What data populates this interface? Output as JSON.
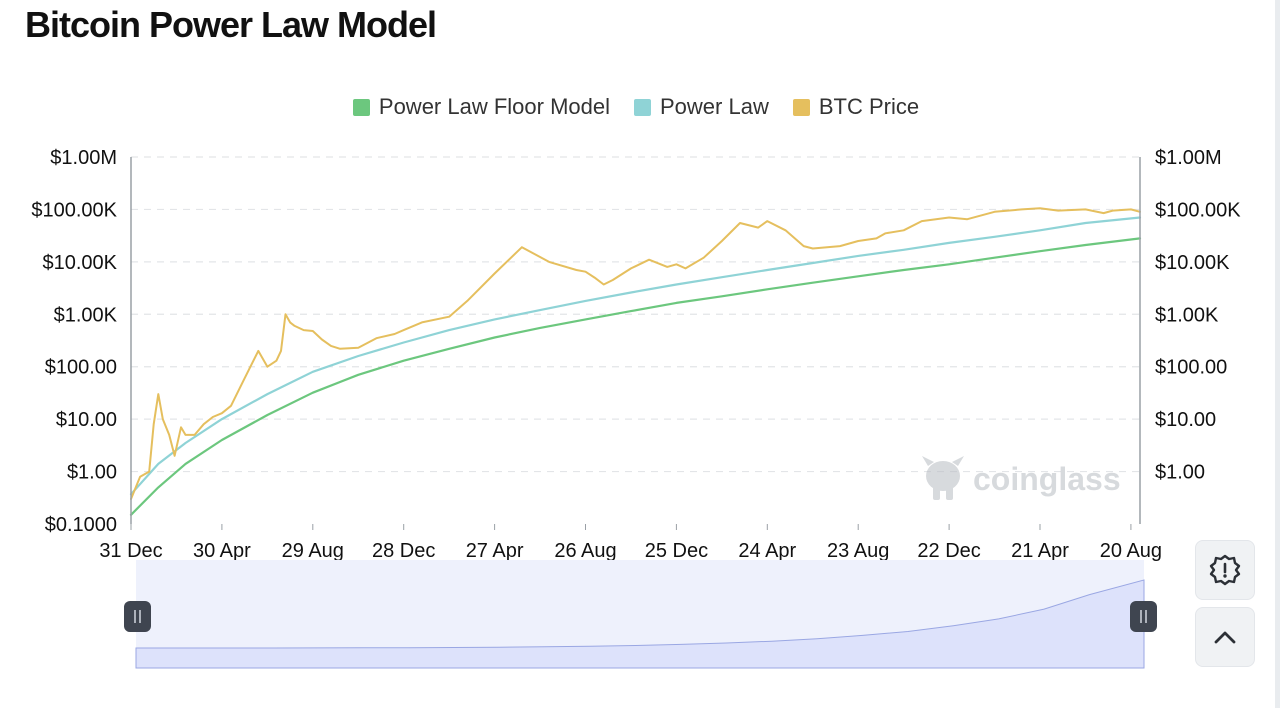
{
  "page": {
    "title": "Bitcoin Power Law Model"
  },
  "legend": [
    {
      "label": "Power Law Floor Model",
      "color": "#6cc77e"
    },
    {
      "label": "Power Law",
      "color": "#8fd3d6"
    },
    {
      "label": "BTC Price",
      "color": "#e5bf5e"
    }
  ],
  "watermark": "coinglass",
  "controls": {
    "settings_icon": "alert-gear-icon",
    "scroll_top_icon": "chevron-up-icon"
  },
  "chart_data": {
    "type": "line",
    "title": "Bitcoin Power Law Model",
    "yscale": "log",
    "ylim": [
      0.1,
      1000000
    ],
    "y_tick_values": [
      0.1,
      1,
      10,
      100,
      1000,
      10000,
      100000,
      1000000
    ],
    "y_tick_labels_left": [
      "$0.1000",
      "$1.00",
      "$10.00",
      "$100.00",
      "$1.00K",
      "$10.00K",
      "$100.00K",
      "$1.00M"
    ],
    "y_tick_labels_right": [
      "",
      "$1.00",
      "$10.00",
      "$100.00",
      "$1.00K",
      "$10.00K",
      "$100.00K",
      "$1.00M"
    ],
    "x_tick_labels": [
      "31 Dec",
      "30 Apr",
      "29 Aug",
      "28 Dec",
      "27 Apr",
      "26 Aug",
      "25 Dec",
      "24 Apr",
      "23 Aug",
      "22 Dec",
      "21 Apr",
      "20 Aug"
    ],
    "x_tick_index": [
      0,
      1,
      2,
      3,
      4,
      5,
      6,
      7,
      8,
      9,
      10,
      11
    ],
    "x_index_range": [
      0,
      11.1
    ],
    "series": [
      {
        "name": "BTC Price",
        "color": "#e5bf5e",
        "x": [
          0,
          0.1,
          0.2,
          0.25,
          0.3,
          0.35,
          0.42,
          0.48,
          0.55,
          0.6,
          0.7,
          0.8,
          0.9,
          1.0,
          1.1,
          1.25,
          1.4,
          1.5,
          1.6,
          1.65,
          1.7,
          1.75,
          1.8,
          1.9,
          2.0,
          2.1,
          2.2,
          2.3,
          2.5,
          2.7,
          2.9,
          3.0,
          3.2,
          3.5,
          3.7,
          4.0,
          4.3,
          4.6,
          4.9,
          5.0,
          5.1,
          5.2,
          5.3,
          5.5,
          5.7,
          5.9,
          6.0,
          6.1,
          6.3,
          6.5,
          6.7,
          6.9,
          7.0,
          7.2,
          7.4,
          7.5,
          7.8,
          8.0,
          8.2,
          8.3,
          8.5,
          8.7,
          9.0,
          9.2,
          9.5,
          9.8,
          10.0,
          10.2,
          10.5,
          10.7,
          10.8,
          11.0,
          11.1
        ],
        "values": [
          0.3,
          0.8,
          1,
          8,
          30,
          10,
          5,
          2,
          7,
          5,
          5,
          8,
          11,
          13,
          18,
          60,
          200,
          100,
          130,
          200,
          1000,
          700,
          600,
          500,
          480,
          330,
          250,
          220,
          230,
          350,
          420,
          500,
          700,
          900,
          1800,
          6000,
          19000,
          10000,
          7000,
          6500,
          5000,
          3700,
          4500,
          7500,
          11000,
          8000,
          9000,
          7500,
          12000,
          25000,
          55000,
          45000,
          60000,
          40000,
          20000,
          18000,
          20000,
          25000,
          28000,
          35000,
          40000,
          60000,
          70000,
          65000,
          90000,
          100000,
          105000,
          95000,
          100000,
          85000,
          95000,
          100000,
          90000
        ]
      },
      {
        "name": "Power Law",
        "color": "#8fd3d6",
        "x": [
          0,
          0.3,
          0.6,
          1.0,
          1.5,
          2.0,
          2.5,
          3.0,
          3.5,
          4.0,
          4.5,
          5.0,
          5.5,
          6.0,
          6.5,
          7.0,
          7.5,
          8.0,
          8.5,
          9.0,
          9.5,
          10.0,
          10.5,
          11.1
        ],
        "values": [
          0.37,
          1.4,
          3.5,
          10,
          30,
          80,
          160,
          290,
          500,
          800,
          1200,
          1800,
          2600,
          3700,
          5100,
          7000,
          9500,
          13000,
          17000,
          23000,
          30000,
          40000,
          55000,
          70000
        ]
      },
      {
        "name": "Power Law Floor Model",
        "color": "#6cc77e",
        "x": [
          0,
          0.3,
          0.6,
          1.0,
          1.5,
          2.0,
          2.5,
          3.0,
          3.5,
          4.0,
          4.5,
          5.0,
          5.5,
          6.0,
          6.5,
          7.0,
          7.5,
          8.0,
          8.5,
          9.0,
          9.5,
          10.0,
          10.5,
          11.1
        ],
        "values": [
          0.15,
          0.5,
          1.4,
          4,
          12,
          32,
          70,
          130,
          220,
          360,
          550,
          800,
          1150,
          1650,
          2200,
          3000,
          4000,
          5300,
          7000,
          9000,
          12000,
          16000,
          21000,
          28000
        ]
      }
    ]
  }
}
